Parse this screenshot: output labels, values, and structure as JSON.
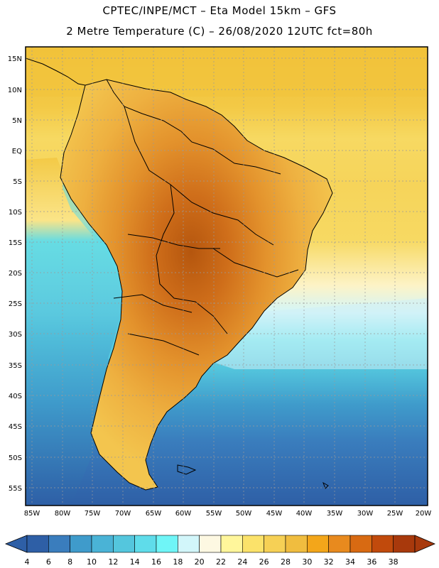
{
  "title": {
    "line1": "CPTEC/INPE/MCT –  Eta Model 15km – GFS",
    "line2": "2 Metre Temperature (C) – 26/08/2020 12UTC fct=80h"
  },
  "lat_labels": [
    "15N",
    "10N",
    "5N",
    "EQ",
    "5S",
    "10S",
    "15S",
    "20S",
    "25S",
    "30S",
    "35S",
    "40S",
    "45S",
    "50S",
    "55S"
  ],
  "lon_labels": [
    "85W",
    "80W",
    "75W",
    "70W",
    "65W",
    "60W",
    "55W",
    "50W",
    "45W",
    "40W",
    "35W",
    "30W",
    "25W",
    "20W"
  ],
  "colorbar": {
    "labels": [
      "4",
      "6",
      "8",
      "10",
      "12",
      "14",
      "16",
      "18",
      "20",
      "22",
      "24",
      "26",
      "28",
      "30",
      "32",
      "34",
      "36",
      "38"
    ],
    "colors": [
      "#2e5fa6",
      "#3a7dbd",
      "#3f9bcb",
      "#4ab3d6",
      "#54c6dd",
      "#5fdcea",
      "#6ff5f7",
      "#d2f6fa",
      "#fdf8e2",
      "#fff69b",
      "#fbe26a",
      "#f6d055",
      "#f0bd3f",
      "#f3a61a",
      "#e88a1e",
      "#d86a12",
      "#c14a0c",
      "#a8390c"
    ]
  }
}
